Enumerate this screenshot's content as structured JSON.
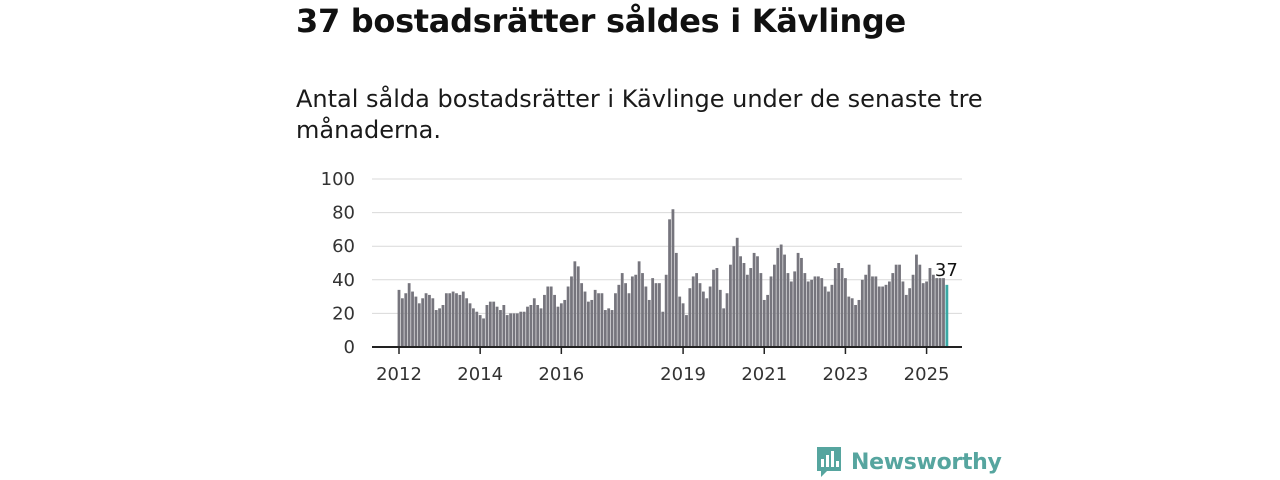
{
  "title": "37 bostadsrätter såldes i Kävlinge",
  "subtitle": "Antal sålda bostadsrätter i Kävlinge under de senaste tre månaderna.",
  "brand": {
    "name": "Newsworthy",
    "icon": "newsworthy-logo-icon"
  },
  "colors": {
    "bar": "#76757d",
    "highlight": "#3aa8a4",
    "grid": "#d9d9d9",
    "axis": "#222222",
    "brand": "#56a59f"
  },
  "chart_data": {
    "type": "bar",
    "ylim": [
      0,
      100
    ],
    "yticks": [
      0,
      20,
      40,
      60,
      80,
      100
    ],
    "xticks": [
      {
        "label": "2012",
        "index": 0
      },
      {
        "label": "2014",
        "index": 24
      },
      {
        "label": "2016",
        "index": 48
      },
      {
        "label": "2019",
        "index": 84
      },
      {
        "label": "2021",
        "index": 108
      },
      {
        "label": "2023",
        "index": 132
      },
      {
        "label": "2025",
        "index": 156
      }
    ],
    "highlight_label": "37",
    "grid": true,
    "values": [
      34,
      29,
      32,
      38,
      33,
      30,
      26,
      29,
      32,
      31,
      29,
      22,
      23,
      25,
      32,
      32,
      33,
      32,
      31,
      33,
      29,
      26,
      23,
      21,
      19,
      17,
      25,
      27,
      27,
      24,
      22,
      25,
      19,
      20,
      20,
      20,
      21,
      21,
      24,
      25,
      29,
      25,
      23,
      31,
      36,
      36,
      31,
      24,
      26,
      28,
      36,
      42,
      51,
      48,
      38,
      33,
      27,
      28,
      34,
      32,
      32,
      22,
      23,
      22,
      32,
      37,
      44,
      38,
      32,
      42,
      43,
      51,
      44,
      36,
      28,
      41,
      38,
      38,
      21,
      43,
      76,
      82,
      56,
      30,
      26,
      19,
      35,
      42,
      44,
      38,
      33,
      29,
      36,
      46,
      47,
      34,
      23,
      32,
      49,
      60,
      65,
      54,
      50,
      43,
      47,
      56,
      54,
      44,
      28,
      31,
      42,
      49,
      59,
      61,
      55,
      44,
      39,
      45,
      56,
      53,
      44,
      39,
      40,
      42,
      42,
      41,
      36,
      33,
      37,
      47,
      50,
      47,
      41,
      30,
      29,
      25,
      28,
      40,
      43,
      49,
      42,
      42,
      36,
      36,
      37,
      39,
      44,
      49,
      49,
      39,
      31,
      35,
      43,
      55,
      49,
      38,
      39,
      47,
      43,
      41,
      41,
      41,
      37
    ]
  }
}
